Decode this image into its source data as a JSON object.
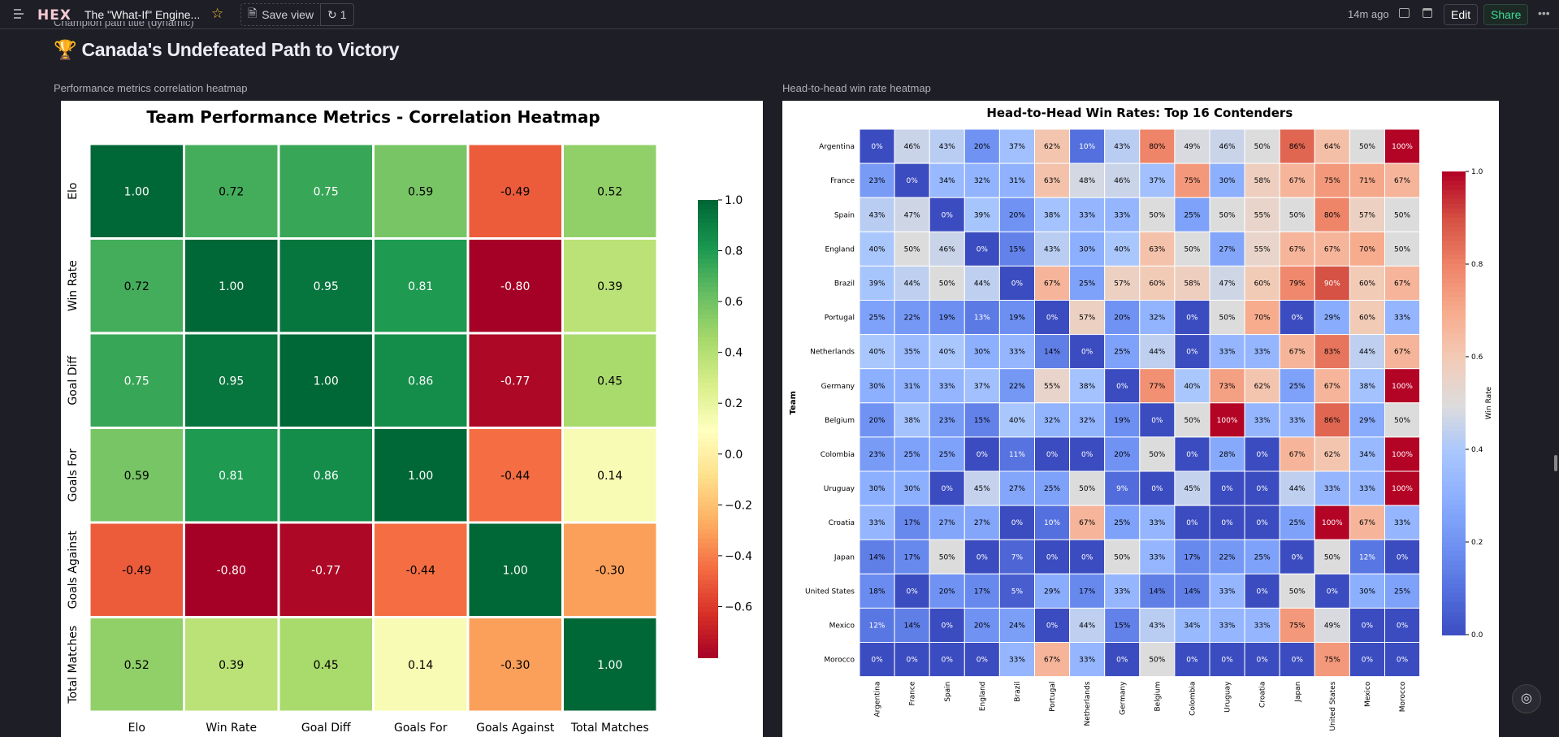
{
  "topbar": {
    "app_title": "The \"What-If\" Engine...",
    "logo": "HEX",
    "save_view": "Save view",
    "undo_count": "1",
    "last_edited": "14m ago",
    "edit": "Edit",
    "share": "Share",
    "share_color": "#3ddc97"
  },
  "page": {
    "cell_label_top": "Champion path title (dynamic)",
    "heading": "Canada's Undefeated Path to Victory",
    "heading_icon": "trophy-icon",
    "left_cell_label": "Performance metrics correlation heatmap",
    "right_cell_label": "Head-to-head win rate heatmap"
  },
  "chart_data": [
    {
      "type": "heatmap",
      "title": "Team Performance Metrics - Correlation Heatmap",
      "colormap": "RdYlGn",
      "categories": [
        "Elo",
        "Win Rate",
        "Goal Diff",
        "Goals For",
        "Goals Against",
        "Total Matches"
      ],
      "values": [
        [
          1.0,
          0.72,
          0.75,
          0.59,
          -0.49,
          0.52
        ],
        [
          0.72,
          1.0,
          0.95,
          0.81,
          -0.8,
          0.39
        ],
        [
          0.75,
          0.95,
          1.0,
          0.86,
          -0.77,
          0.45
        ],
        [
          0.59,
          0.81,
          0.86,
          1.0,
          -0.44,
          0.14
        ],
        [
          -0.49,
          -0.8,
          -0.77,
          -0.44,
          1.0,
          -0.3
        ],
        [
          0.52,
          0.39,
          0.45,
          0.14,
          -0.3,
          1.0
        ]
      ],
      "labels": [
        [
          "1.00",
          "0.72",
          "0.75",
          "0.59",
          "-0.49",
          "0.52"
        ],
        [
          "0.72",
          "1.00",
          "0.95",
          "0.81",
          "-0.80",
          "0.39"
        ],
        [
          "0.75",
          "0.95",
          "1.00",
          "0.86",
          "-0.77",
          "0.45"
        ],
        [
          "0.59",
          "0.81",
          "0.86",
          "1.00",
          "-0.44",
          "0.14"
        ],
        [
          "-0.49",
          "-0.80",
          "-0.77",
          "-0.44",
          "1.00",
          "-0.30"
        ],
        [
          "0.52",
          "0.39",
          "0.45",
          "0.14",
          "-0.30",
          "1.00"
        ]
      ],
      "colorbar_range": [
        -0.8,
        1.0
      ],
      "colorbar_ticks": [
        "1.0",
        "0.8",
        "0.6",
        "0.4",
        "0.2",
        "0.0",
        "−0.2",
        "−0.4",
        "−0.6"
      ]
    },
    {
      "type": "heatmap",
      "title": "Head-to-Head Win Rates: Top 16 Contenders",
      "colormap": "coolwarm",
      "ylabel": "Team",
      "colorbar_label": "Win Rate",
      "colorbar_range": [
        0,
        1
      ],
      "colorbar_ticks": [
        "1.0",
        "0.8",
        "0.6",
        "0.4",
        "0.2",
        "0.0"
      ],
      "categories": [
        "Argentina",
        "France",
        "Spain",
        "England",
        "Brazil",
        "Portugal",
        "Netherlands",
        "Germany",
        "Belgium",
        "Colombia",
        "Uruguay",
        "Croatia",
        "Japan",
        "United States",
        "Mexico",
        "Morocco"
      ],
      "values": [
        [
          0,
          46,
          43,
          20,
          37,
          62,
          10,
          43,
          80,
          49,
          46,
          50,
          86,
          64,
          50,
          100
        ],
        [
          23,
          0,
          34,
          32,
          31,
          63,
          48,
          46,
          37,
          75,
          30,
          58,
          67,
          75,
          71,
          67
        ],
        [
          43,
          47,
          0,
          39,
          20,
          38,
          33,
          33,
          50,
          25,
          50,
          55,
          50,
          80,
          57,
          50
        ],
        [
          40,
          50,
          46,
          0,
          15,
          43,
          30,
          40,
          63,
          50,
          27,
          55,
          67,
          67,
          70,
          50
        ],
        [
          39,
          44,
          50,
          44,
          0,
          67,
          25,
          57,
          60,
          58,
          47,
          60,
          79,
          90,
          60,
          67
        ],
        [
          25,
          22,
          19,
          13,
          19,
          0,
          57,
          20,
          32,
          0,
          50,
          70,
          0,
          29,
          60,
          33
        ],
        [
          40,
          35,
          40,
          30,
          33,
          14,
          0,
          25,
          44,
          0,
          33,
          33,
          67,
          83,
          44,
          67
        ],
        [
          30,
          31,
          33,
          37,
          22,
          55,
          38,
          0,
          77,
          40,
          73,
          62,
          25,
          67,
          38,
          100
        ],
        [
          20,
          38,
          23,
          15,
          40,
          32,
          32,
          19,
          0,
          50,
          100,
          33,
          33,
          86,
          29,
          50
        ],
        [
          23,
          25,
          25,
          0,
          11,
          0,
          0,
          20,
          50,
          0,
          28,
          0,
          67,
          62,
          34,
          100
        ],
        [
          30,
          30,
          0,
          45,
          27,
          25,
          50,
          9,
          0,
          45,
          0,
          0,
          44,
          33,
          33,
          100
        ],
        [
          33,
          17,
          27,
          27,
          0,
          10,
          67,
          25,
          33,
          0,
          0,
          0,
          25,
          100,
          67,
          33
        ],
        [
          14,
          17,
          50,
          0,
          7,
          0,
          0,
          50,
          33,
          17,
          22,
          25,
          0,
          50,
          12,
          0
        ],
        [
          18,
          0,
          20,
          17,
          5,
          29,
          17,
          33,
          14,
          14,
          33,
          0,
          50,
          0,
          30,
          25
        ],
        [
          12,
          14,
          0,
          20,
          24,
          0,
          44,
          15,
          43,
          34,
          33,
          33,
          75,
          49,
          0,
          0
        ],
        [
          0,
          0,
          0,
          0,
          33,
          67,
          33,
          0,
          50,
          0,
          0,
          0,
          0,
          75,
          0,
          0
        ]
      ]
    }
  ]
}
